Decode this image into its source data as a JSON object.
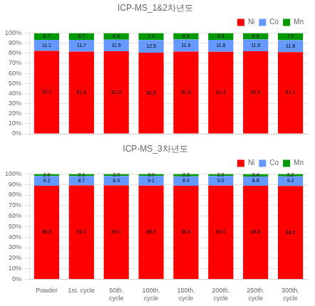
{
  "chart_data": [
    {
      "type": "bar",
      "title": "ICP-MS_1&2차년도",
      "categories": [
        null,
        null,
        null,
        null,
        null,
        null,
        null,
        null
      ],
      "series": [
        {
          "name": "Ni",
          "color": "#FF0000",
          "values": [
            82.2,
            81.6,
            81.9,
            80.5,
            81.6,
            81.4,
            82.0,
            81.1
          ],
          "value_labels": [
            "82.2",
            "81.6",
            "81.9",
            "80.5",
            "81.6",
            "81.4",
            "82.0",
            "81.1"
          ]
        },
        {
          "name": "Co",
          "color": "#6699FF",
          "values": [
            11.1,
            11.7,
            11.5,
            12.5,
            11.9,
            11.8,
            11.5,
            11.8
          ],
          "value_labels": [
            "11.1",
            "11.7",
            "11.5",
            "12.5",
            "11.9",
            "11.8",
            "11.5",
            "11.8"
          ]
        },
        {
          "name": "Mn",
          "color": "#009900",
          "values": [
            6.7,
            6.7,
            6.6,
            7.0,
            6.5,
            6.8,
            6.5,
            7.0
          ],
          "value_labels": [
            "6.7",
            "6.7",
            "6.6",
            "7.0",
            "6.5",
            "6.8",
            "6.5",
            "7.0"
          ]
        }
      ],
      "ylim": [
        0,
        100
      ],
      "yticks": [
        {
          "value": 0,
          "label": "0%"
        },
        {
          "value": 10,
          "label": "10%"
        },
        {
          "value": 20,
          "label": "20%"
        },
        {
          "value": 30,
          "label": "30%"
        },
        {
          "value": 40,
          "label": "40%"
        },
        {
          "value": 50,
          "label": "50%"
        },
        {
          "value": 60,
          "label": "60%"
        },
        {
          "value": 70,
          "label": "70%"
        },
        {
          "value": 80,
          "label": "80%"
        },
        {
          "value": 90,
          "label": "90%"
        },
        {
          "value": 100,
          "label": "100%"
        }
      ],
      "grid": true,
      "legend": "upper right",
      "stacked": true,
      "data_labels": true,
      "tick_labels": "y"
    },
    {
      "type": "bar",
      "title": "ICP-MS_3차년도",
      "categories": [
        "Powder",
        "1st. cycle",
        "50th.\ncycle",
        "100th.\ncycle",
        "150th.\ncycle",
        "200th.\ncycle",
        "250th.\ncycle",
        "300th.\ncycle"
      ],
      "series": [
        {
          "name": "Ni",
          "color": "#FF0000",
          "values": [
            88.8,
            89.2,
            89.1,
            88.9,
            88.8,
            89.0,
            88.8,
            88.6
          ],
          "value_labels": [
            "88.8",
            "89.2",
            "89.1",
            "88.9",
            "88.8",
            "89.0",
            "88.8",
            "88.6"
          ]
        },
        {
          "name": "Co",
          "color": "#6699FF",
          "values": [
            9.2,
            8.7,
            8.9,
            9.1,
            8.9,
            9.0,
            8.8,
            9.2
          ],
          "value_labels": [
            "9.2",
            "8.7",
            "8.9",
            "9.1",
            "8.9",
            "9.0",
            "8.8",
            "9.2"
          ]
        },
        {
          "name": "Mn",
          "color": "#009900",
          "values": [
            2.0,
            2.1,
            2.0,
            2.0,
            2.3,
            2.0,
            2.4,
            2.2
          ],
          "value_labels": [
            "2.0",
            "2.1",
            "2.0",
            "2.0",
            "2.3",
            "2.0",
            "2.4",
            "2.2"
          ]
        }
      ],
      "ylim": [
        0,
        100
      ],
      "yticks": [
        {
          "value": 0,
          "label": "0%"
        },
        {
          "value": 10,
          "label": "10%"
        },
        {
          "value": 20,
          "label": "20%"
        },
        {
          "value": 30,
          "label": "30%"
        },
        {
          "value": 40,
          "label": "40%"
        },
        {
          "value": 50,
          "label": "50%"
        },
        {
          "value": 60,
          "label": "60%"
        },
        {
          "value": 70,
          "label": "70%"
        },
        {
          "value": 80,
          "label": "80%"
        },
        {
          "value": 90,
          "label": "90%"
        },
        {
          "value": 100,
          "label": "100%"
        }
      ],
      "grid": true,
      "legend": "upper right",
      "stacked": true,
      "data_labels": true
    }
  ]
}
